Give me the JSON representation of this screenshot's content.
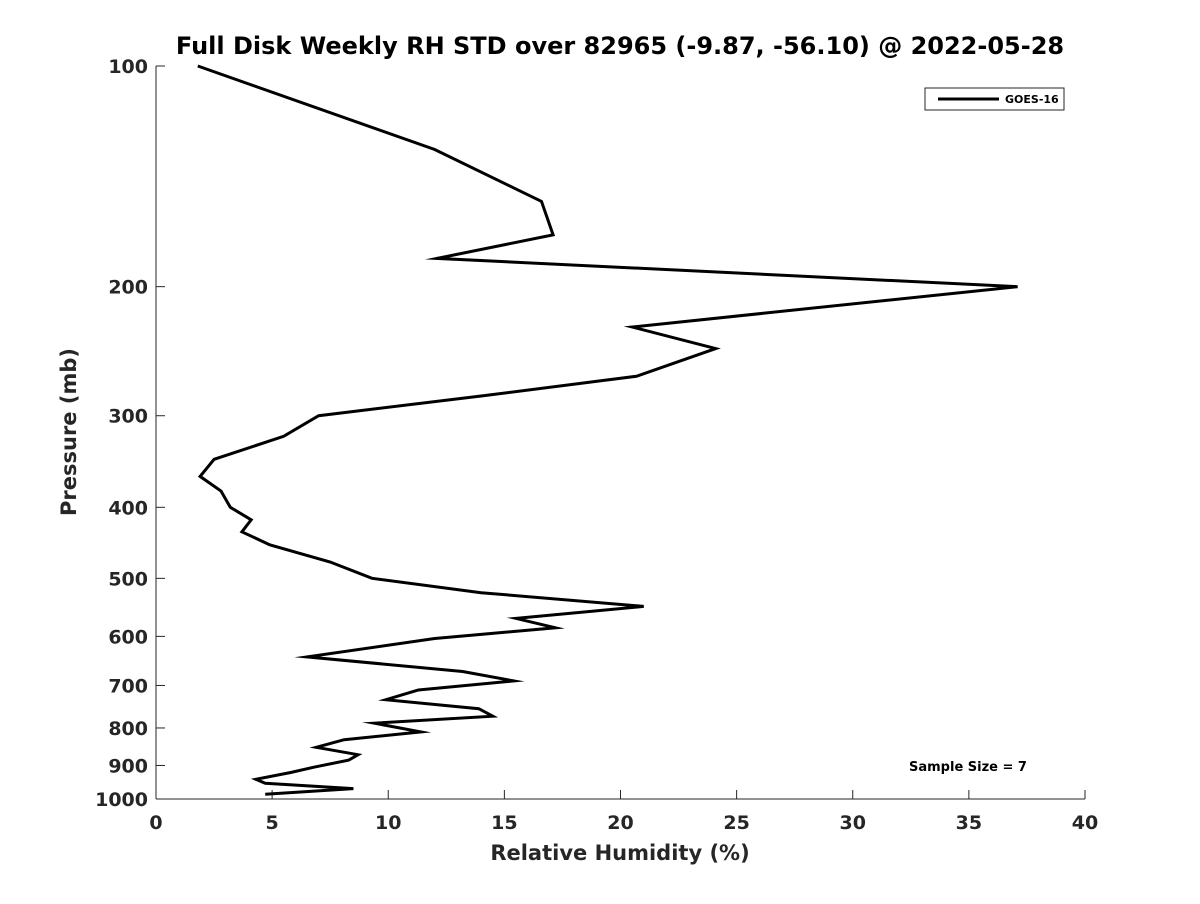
{
  "chart_data": {
    "type": "line",
    "title": "Full Disk Weekly RH STD over 82965 (-9.87, -56.10) @ 2022-05-28",
    "xlabel": "Relative Humidity (%)",
    "ylabel": "Pressure (mb)",
    "xlim": [
      0,
      40
    ],
    "ylim": [
      100,
      1000
    ],
    "y_scale": "log",
    "y_reversed": true,
    "grid": false,
    "legend_position": "top-right",
    "x_ticks": [
      0,
      5,
      10,
      15,
      20,
      25,
      30,
      35,
      40
    ],
    "x_tick_labels": [
      "0",
      "5",
      "10",
      "15",
      "20",
      "25",
      "30",
      "35",
      "40"
    ],
    "y_ticks": [
      100,
      200,
      300,
      400,
      500,
      600,
      700,
      800,
      900,
      1000
    ],
    "y_tick_labels": [
      "100",
      "200",
      "300",
      "400",
      "500",
      "600",
      "700",
      "800",
      "900",
      "1000"
    ],
    "series": [
      {
        "name": "GOES-16",
        "color": "#000000",
        "x": [
          1.8,
          12.0,
          16.6,
          17.1,
          12.1,
          37.1,
          20.5,
          24.1,
          20.7,
          14.0,
          7.0,
          5.5,
          2.5,
          1.9,
          2.8,
          3.2,
          4.1,
          3.7,
          4.9,
          7.5,
          9.3,
          14.0,
          21.0,
          15.5,
          17.2,
          12.0,
          6.5,
          13.2,
          15.4,
          11.3,
          9.9,
          13.9,
          14.5,
          9.4,
          11.4,
          8.1,
          6.9,
          8.7,
          8.3,
          6.8,
          5.8,
          4.3,
          4.7,
          8.5,
          4.7
        ],
        "y": [
          100,
          130,
          153,
          170,
          183,
          200,
          227,
          243,
          265,
          282,
          300,
          320,
          344,
          363,
          380,
          400,
          416,
          432,
          450,
          475,
          500,
          523,
          546,
          567,
          584,
          604,
          640,
          670,
          690,
          710,
          732,
          753,
          771,
          788,
          810,
          830,
          850,
          870,
          885,
          905,
          920,
          940,
          952,
          968,
          985
        ]
      }
    ],
    "annotations": [
      "Sample Size = 7"
    ]
  },
  "legend": {
    "label": "GOES-16"
  },
  "annotation": {
    "sample_size": "Sample Size = 7"
  }
}
